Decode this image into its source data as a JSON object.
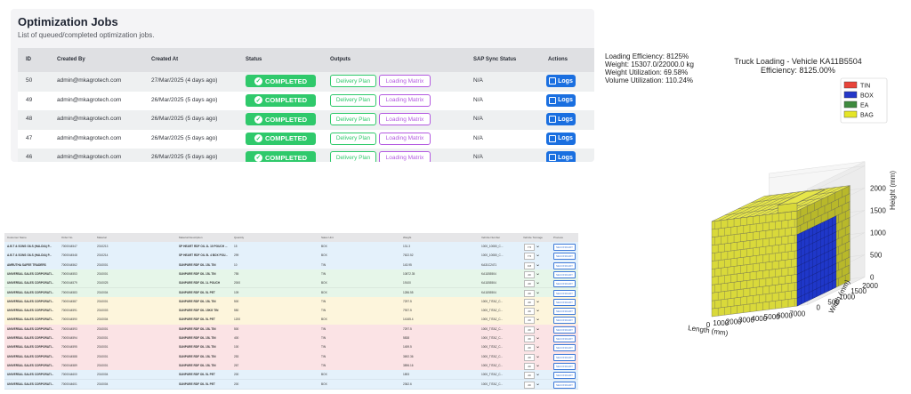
{
  "jobs": {
    "title": "Optimization Jobs",
    "subtitle": "List of queued/completed optimization jobs.",
    "columns": [
      "ID",
      "Created By",
      "Created At",
      "Status",
      "Outputs",
      "SAP Sync Status",
      "Actions"
    ],
    "rows": [
      {
        "id": "50",
        "created_by": "admin@mkagrotech.com",
        "created_at": "27/Mar/2025 (4 days ago)",
        "status": "COMPLETED",
        "delivery": "Delivery Plan",
        "matrix": "Loading Matrix",
        "sap": "N/A",
        "action": "Logs"
      },
      {
        "id": "49",
        "created_by": "admin@mkagrotech.com",
        "created_at": "26/Mar/2025 (5 days ago)",
        "status": "COMPLETED",
        "delivery": "Delivery Plan",
        "matrix": "Loading Matrix",
        "sap": "N/A",
        "action": "Logs"
      },
      {
        "id": "48",
        "created_by": "admin@mkagrotech.com",
        "created_at": "26/Mar/2025 (5 days ago)",
        "status": "COMPLETED",
        "delivery": "Delivery Plan",
        "matrix": "Loading Matrix",
        "sap": "N/A",
        "action": "Logs"
      },
      {
        "id": "47",
        "created_by": "admin@mkagrotech.com",
        "created_at": "26/Mar/2025 (5 days ago)",
        "status": "COMPLETED",
        "delivery": "Delivery Plan",
        "matrix": "Loading Matrix",
        "sap": "N/A",
        "action": "Logs"
      },
      {
        "id": "46",
        "created_by": "admin@mkagrotech.com",
        "created_at": "26/Mar/2025 (5 days ago)",
        "status": "COMPLETED",
        "delivery": "Delivery Plan",
        "matrix": "Loading Matrix",
        "sap": "N/A",
        "action": "Logs"
      }
    ],
    "colors": {
      "completed": "#2fc96b",
      "delivery": "#2fc96b",
      "matrix": "#b35ae0",
      "logs": "#1a6fe0"
    }
  },
  "orders": {
    "columns": [
      "Customer Name",
      "Order No.",
      "Material",
      "Material Description",
      "Quantity",
      "Sales Unit",
      "Weight",
      "Vehicle Number",
      "Vehicle Tonnage",
      "Process"
    ],
    "rows": [
      {
        "customer": "A.B.T & SONS OILS (HALDIA) P...",
        "order": "7000044547",
        "material": "2010213",
        "desc": "SP HEART RDF OIL 1L 10 POUCH ...",
        "qty": "15",
        "unit": "BOX",
        "weight": "131.3",
        "vehicle": "1000_10080_C...",
        "tonnage": "7.5",
        "process": "SECONDARY",
        "bg": "#e4f1fb"
      },
      {
        "customer": "A.B.T & SONS OILS (HALDIA) P...",
        "order": "7000044548",
        "material": "2010214",
        "desc": "SP HEART RDF OIL 5L 4 BOX POU...",
        "qty": "299",
        "unit": "BOX",
        "weight": "7622.52",
        "vehicle": "1000_10080_C...",
        "tonnage": "7.5",
        "process": "SECONDARY",
        "bg": "#e4f1fb"
      },
      {
        "customer": "AMRUTHA SAFEE TRADERS",
        "order": "7000044562",
        "material": "2010001",
        "desc": "SUNPURE RDF OIL 15L TIN",
        "qty": "10",
        "unit": "TIN",
        "weight": "143.95",
        "vehicle": "KA31C2471",
        "tonnage": "0.8",
        "process": "SECONDARY",
        "bg": "#e4f1fb"
      },
      {
        "customer": "UNIVERSAL SALES CORPORATI...",
        "order": "7000044553",
        "material": "2010001",
        "desc": "SUNPURE RDF OIL 15L TIN",
        "qty": "755",
        "unit": "TIN",
        "weight": "10872.35",
        "vehicle": "KA11B5504",
        "tonnage": "20",
        "process": "SECONDARY",
        "bg": "#e6f6e9"
      },
      {
        "customer": "UNIVERSAL SALES CORPORATI...",
        "order": "7000044579",
        "material": "2010025",
        "desc": "SUNPURE RDF OIL 1L POUCH",
        "qty": "2000",
        "unit": "BOX",
        "weight": "19100",
        "vehicle": "KA11B5504",
        "tonnage": "20",
        "process": "SECONDARY",
        "bg": "#e6f6e9"
      },
      {
        "customer": "UNIVERSAL SALES CORPORATI...",
        "order": "7000044583",
        "material": "2010004",
        "desc": "SUNPURE RDF OIL 5L PET",
        "qty": "109",
        "unit": "BOX",
        "weight": "1286.55",
        "vehicle": "KA11B5504",
        "tonnage": "20",
        "process": "SECONDARY",
        "bg": "#e6f6e9"
      },
      {
        "customer": "UNIVERSAL SALES CORPORATI...",
        "order": "7000044587",
        "material": "2010001",
        "desc": "SUNPURE RDF OIL 15L TIN",
        "qty": "500",
        "unit": "TIN",
        "weight": "7297.5",
        "vehicle": "1000_TITAZ_C...",
        "tonnage": "20",
        "process": "SECONDARY",
        "bg": "#fdf5dc"
      },
      {
        "customer": "UNIVERSAL SALES CORPORATI...",
        "order": "7000044591",
        "material": "2010003",
        "desc": "SUNPURE RDF OIL 15KG TIN",
        "qty": "550",
        "unit": "TIN",
        "weight": "7937.5",
        "vehicle": "1000_TITAZ_C...",
        "tonnage": "20",
        "process": "SECONDARY",
        "bg": "#fdf5dc"
      },
      {
        "customer": "UNIVERSAL SALES CORPORATI...",
        "order": "7000044590",
        "material": "2010004",
        "desc": "SUNPURE RDF OIL 5L PET",
        "qty": "1200",
        "unit": "BOX",
        "weight": "14165.4",
        "vehicle": "1000_TITAZ_C...",
        "tonnage": "20",
        "process": "SECONDARY",
        "bg": "#fdf5dc"
      },
      {
        "customer": "UNIVERSAL SALES CORPORATI...",
        "order": "7000044593",
        "material": "2010001",
        "desc": "SUNPURE RDF OIL 15L TIN",
        "qty": "500",
        "unit": "TIN",
        "weight": "7297.5",
        "vehicle": "1000_TITAZ_C...",
        "tonnage": "20",
        "process": "SECONDARY",
        "bg": "#fbe3e5"
      },
      {
        "customer": "UNIVERSAL SALES CORPORATI...",
        "order": "7000044594",
        "material": "2010001",
        "desc": "SUNPURE RDF OIL 15L TIN",
        "qty": "400",
        "unit": "TIN",
        "weight": "5838",
        "vehicle": "1000_TITAZ_C...",
        "tonnage": "20",
        "process": "SECONDARY",
        "bg": "#fbe3e5"
      },
      {
        "customer": "UNIVERSAL SALES CORPORATI...",
        "order": "7000044595",
        "material": "2010001",
        "desc": "SUNPURE RDF OIL 15L TIN",
        "qty": "100",
        "unit": "TIN",
        "weight": "1459.5",
        "vehicle": "1000_TITAZ_C...",
        "tonnage": "20",
        "process": "SECONDARY",
        "bg": "#fbe3e5"
      },
      {
        "customer": "UNIVERSAL SALES CORPORATI...",
        "order": "7000044588",
        "material": "2010001",
        "desc": "SUNPURE RDF OIL 15L TIN",
        "qty": "253",
        "unit": "TIN",
        "weight": "3692.36",
        "vehicle": "1000_TITAZ_C...",
        "tonnage": "20",
        "process": "SECONDARY",
        "bg": "#fbe3e5"
      },
      {
        "customer": "UNIVERSAL SALES CORPORATI...",
        "order": "7000044589",
        "material": "2010001",
        "desc": "SUNPURE RDF OIL 15L TIN",
        "qty": "267",
        "unit": "TIN",
        "weight": "3896.16",
        "vehicle": "1000_TITAZ_C...",
        "tonnage": "20",
        "process": "SECONDARY",
        "bg": "#fbe3e5"
      },
      {
        "customer": "UNIVERSAL SALES CORPORATI...",
        "order": "7000044600",
        "material": "2010004",
        "desc": "SUNPURE RDF OIL 5L PET",
        "qty": "200",
        "unit": "BOX",
        "weight": "1893",
        "vehicle": "1000_TITAZ_C...",
        "tonnage": "20",
        "process": "SECONDARY",
        "bg": "#e4f1fb"
      },
      {
        "customer": "UNIVERSAL SALES CORPORATI...",
        "order": "7000044601",
        "material": "2010004",
        "desc": "SUNPURE RDF OIL 5L PET",
        "qty": "200",
        "unit": "BOX",
        "weight": "2362.6",
        "vehicle": "1000_TITAZ_C...",
        "tonnage": "20",
        "process": "SECONDARY",
        "bg": "#e4f1fb"
      }
    ]
  },
  "chart_data": {
    "type": "3d-box-stack",
    "title": "Truck Loading - Vehicle KA11B5504",
    "subtitle": "Efficiency: 8125.00%",
    "stats": [
      "Loading Efficiency: 8125%",
      "Weight: 15307.0/22000.0 kg",
      "Weight Utilization: 69.58%",
      "Volume Utilization: 110.24%"
    ],
    "legend": [
      {
        "name": "TIN",
        "color": "#e8443a"
      },
      {
        "name": "BOX",
        "color": "#2437c8"
      },
      {
        "name": "EA",
        "color": "#3e8a3e"
      },
      {
        "name": "BAG",
        "color": "#e5e527"
      }
    ],
    "x_axis": {
      "label": "Length (mm)",
      "ticks": [
        "0",
        "1000",
        "2000",
        "3000",
        "4000",
        "5000",
        "6000",
        "7000"
      ]
    },
    "y_axis": {
      "label": "Width (mm)",
      "ticks": [
        "0",
        "500",
        "1000",
        "1500",
        "2000"
      ]
    },
    "z_axis": {
      "label": "Height (mm)",
      "ticks": [
        "0",
        "500",
        "1000",
        "1500",
        "2000"
      ]
    },
    "colors": {
      "bag": "#d9d93a",
      "bag_top": "#e6e64a",
      "bag_side": "#b8b82a",
      "box": "#1f37c9",
      "edge": "#555555"
    }
  }
}
